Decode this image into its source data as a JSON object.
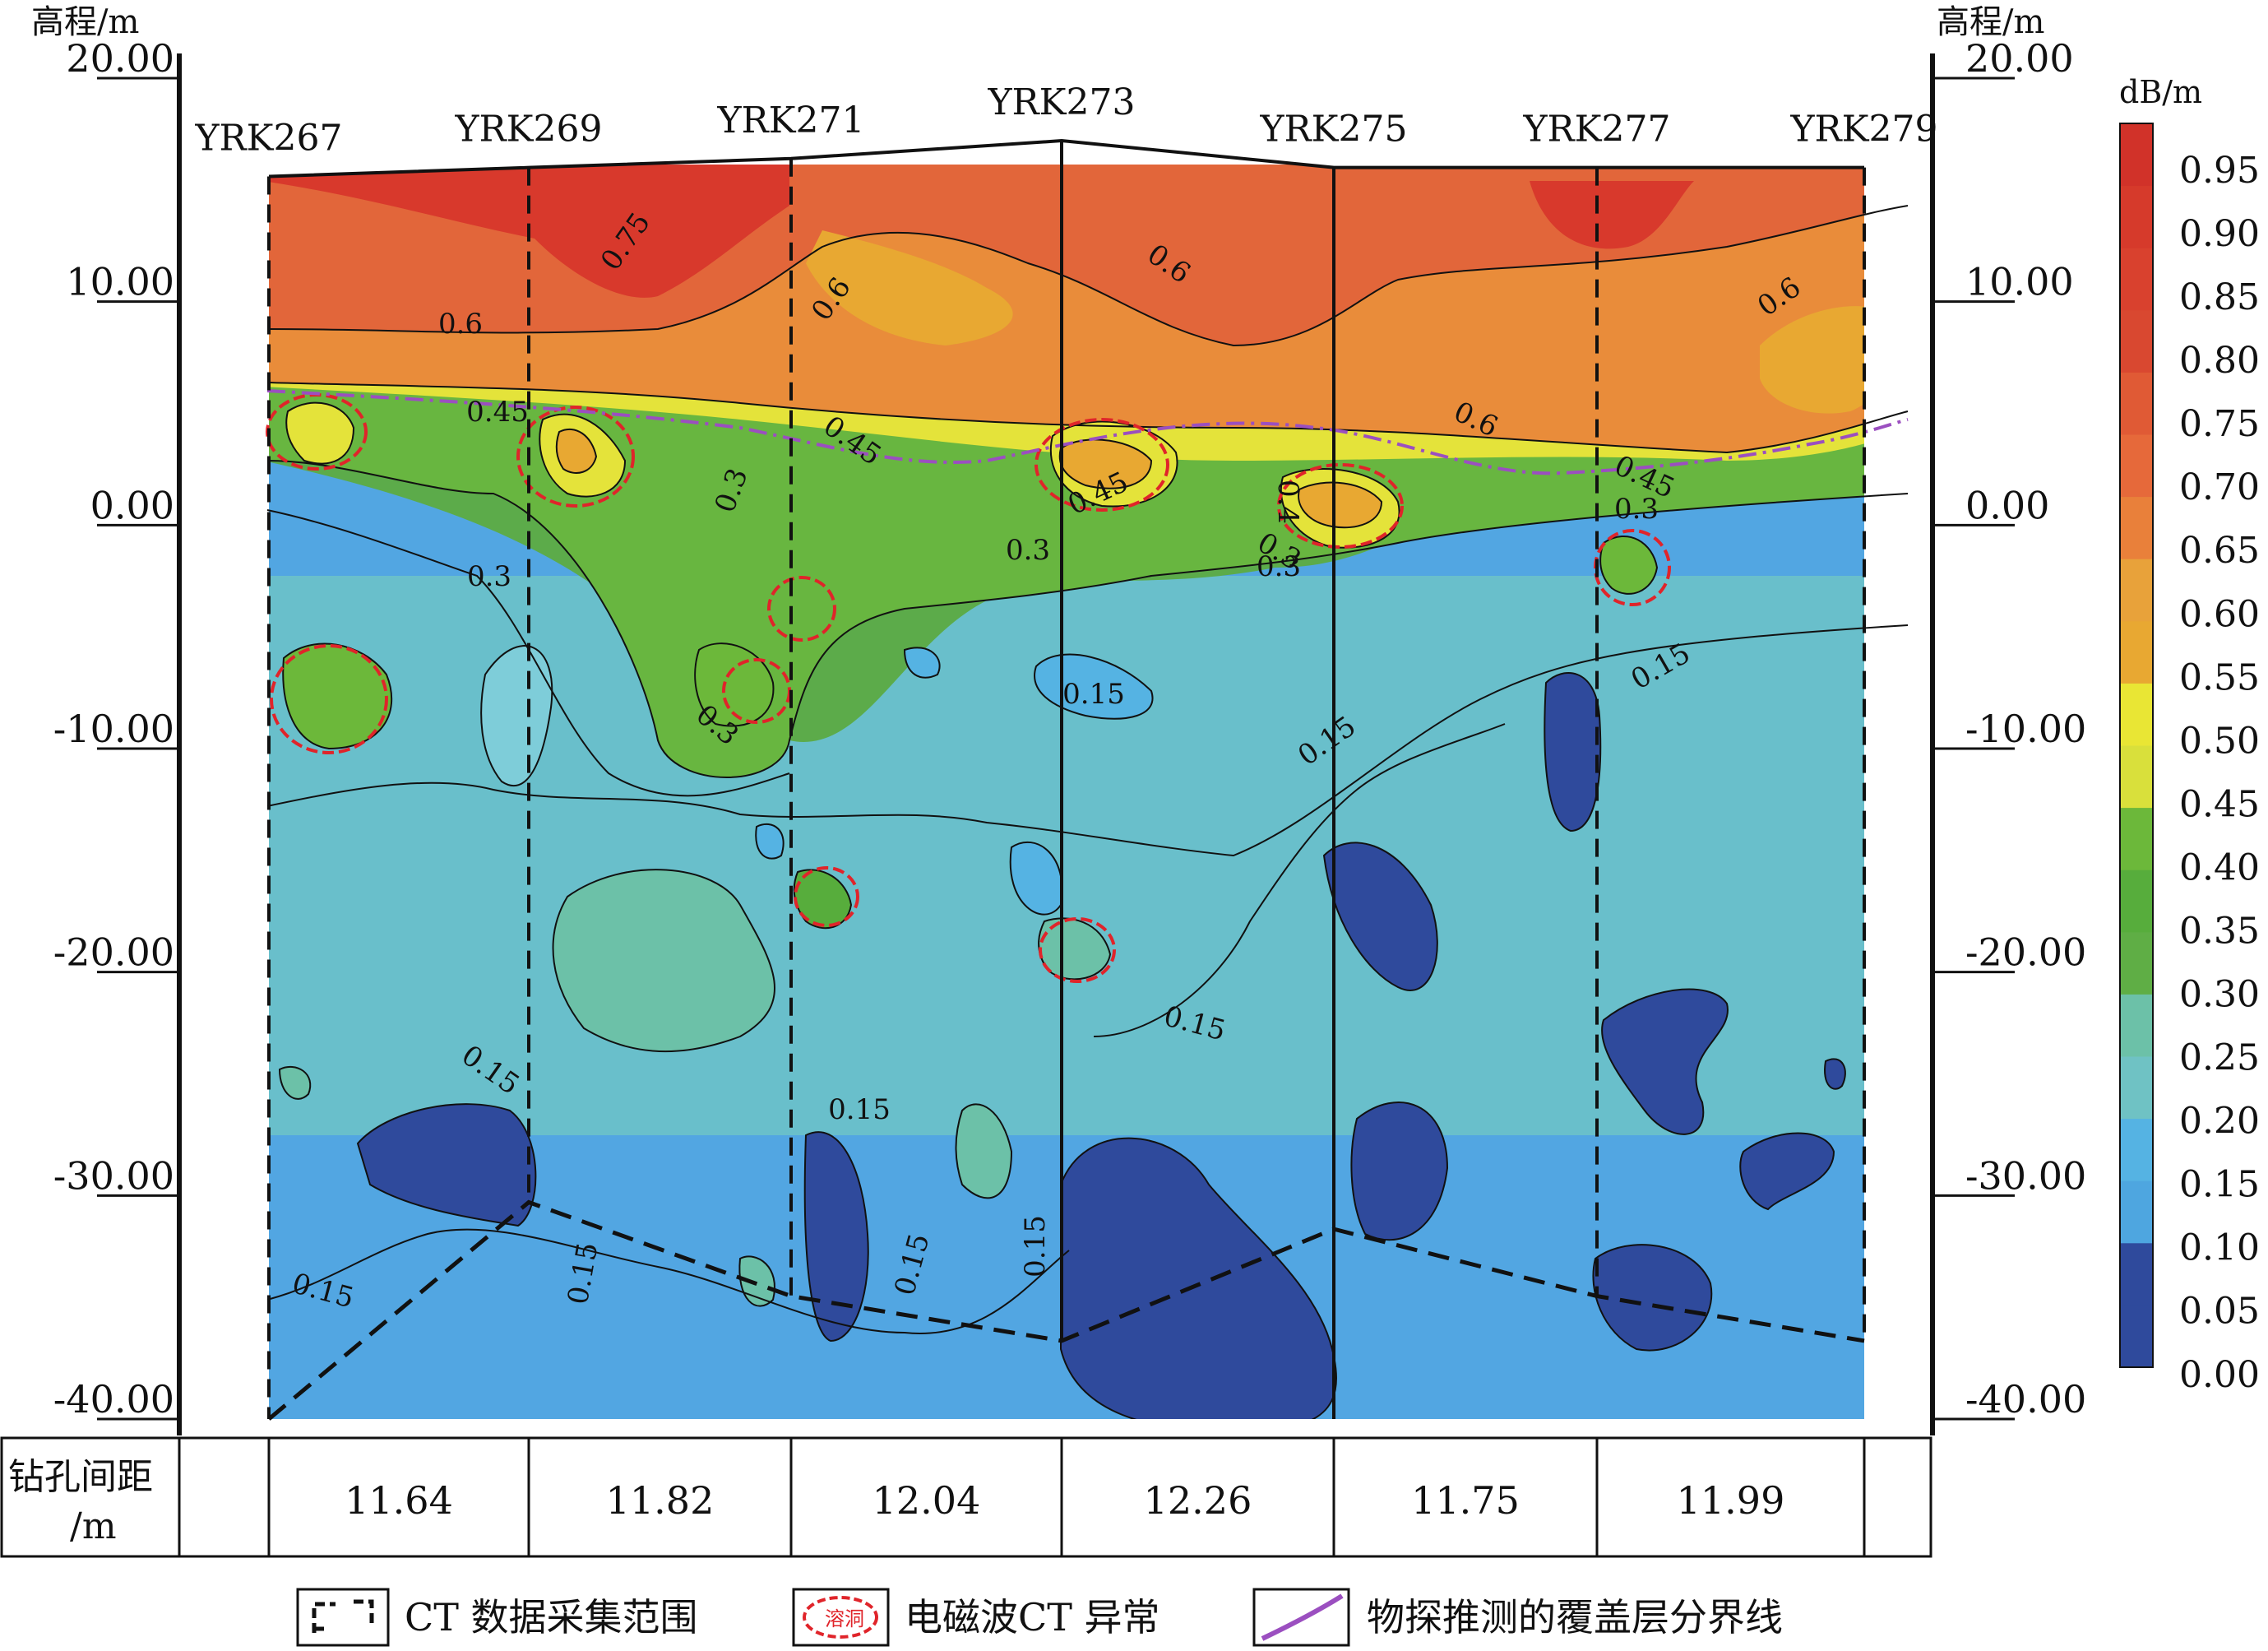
{
  "chart_data": {
    "type": "heatmap",
    "subtype": "electromagnetic wave CT absorption coefficient contour section",
    "y_axis": {
      "label_left": "高程/m",
      "label_right": "高程/m",
      "ticks": [
        "20.00",
        "10.00",
        "0.00",
        "-10.00",
        "-20.00",
        "-30.00",
        "-40.00"
      ],
      "tick_values": [
        20,
        10,
        0,
        -10,
        -20,
        -30,
        -40
      ],
      "ylim": [
        -40,
        20
      ]
    },
    "colorbar": {
      "unit": "dB/m",
      "tick_labels": [
        "0.95",
        "0.90",
        "0.85",
        "0.80",
        "0.75",
        "0.70",
        "0.65",
        "0.60",
        "0.55",
        "0.50",
        "0.45",
        "0.40",
        "0.35",
        "0.30",
        "0.25",
        "0.20",
        "0.15",
        "0.10",
        "0.05",
        "0.00"
      ],
      "levels": [
        0.0,
        0.05,
        0.1,
        0.15,
        0.2,
        0.25,
        0.3,
        0.35,
        0.4,
        0.45,
        0.5,
        0.55,
        0.6,
        0.65,
        0.7,
        0.75,
        0.8,
        0.85,
        0.9,
        0.95,
        1.0
      ],
      "colors": [
        "#2f4a9c",
        "#2f4a9c",
        "#4ea6e0",
        "#55b3e3",
        "#6fc2c4",
        "#6cc1a8",
        "#5fae45",
        "#57ad3c",
        "#6cb83a",
        "#d9e03b",
        "#e9e634",
        "#e8a832",
        "#e8a23a",
        "#e9803a",
        "#e6693a",
        "#e05a35",
        "#d94830",
        "#d9412e",
        "#d63a2b",
        "#d13229"
      ]
    },
    "boreholes": [
      {
        "name": "YRK267",
        "top_elevation": 15.6,
        "bottom_elevation": -40.0
      },
      {
        "name": "YRK269",
        "top_elevation": 16.0,
        "bottom_elevation": -30.3
      },
      {
        "name": "YRK271",
        "top_elevation": 16.4,
        "bottom_elevation": -34.5
      },
      {
        "name": "YRK273",
        "top_elevation": 17.2,
        "bottom_elevation": -36.5
      },
      {
        "name": "YRK275",
        "top_elevation": 16.0,
        "bottom_elevation": -31.5
      },
      {
        "name": "YRK277",
        "top_elevation": 16.0,
        "bottom_elevation": -34.5
      },
      {
        "name": "YRK279",
        "top_elevation": 16.0,
        "bottom_elevation": -36.5
      }
    ],
    "spacing_label": "钻孔间距\n/m",
    "spacing_label_line1": "钻孔间距",
    "spacing_label_line2": "/m",
    "spacings": [
      "11.64",
      "11.82",
      "12.04",
      "12.26",
      "11.75",
      "11.99"
    ],
    "contour_labels": [
      "0.75",
      "0.6",
      "0.6",
      "0.6",
      "0.6",
      "0.6",
      "0.45",
      "0.45",
      "0.45",
      "0.45",
      "0.4",
      "0.3",
      "0.3",
      "0.3",
      "0.3",
      "0.3",
      "0.3",
      "0.3",
      "0.15",
      "0.15",
      "0.15",
      "0.15",
      "0.15",
      "0.15",
      "0.15",
      "0.15",
      "0.15",
      "0.15"
    ],
    "legend": [
      {
        "label": "CT 数据采集范围",
        "symbol": "dashed-bracket"
      },
      {
        "label": "电磁波CT 异常",
        "symbol": "red-dashed-ellipse",
        "symbol_text": "溶洞"
      },
      {
        "label": "物探推测的覆盖层分界线",
        "symbol": "purple-line"
      }
    ]
  }
}
